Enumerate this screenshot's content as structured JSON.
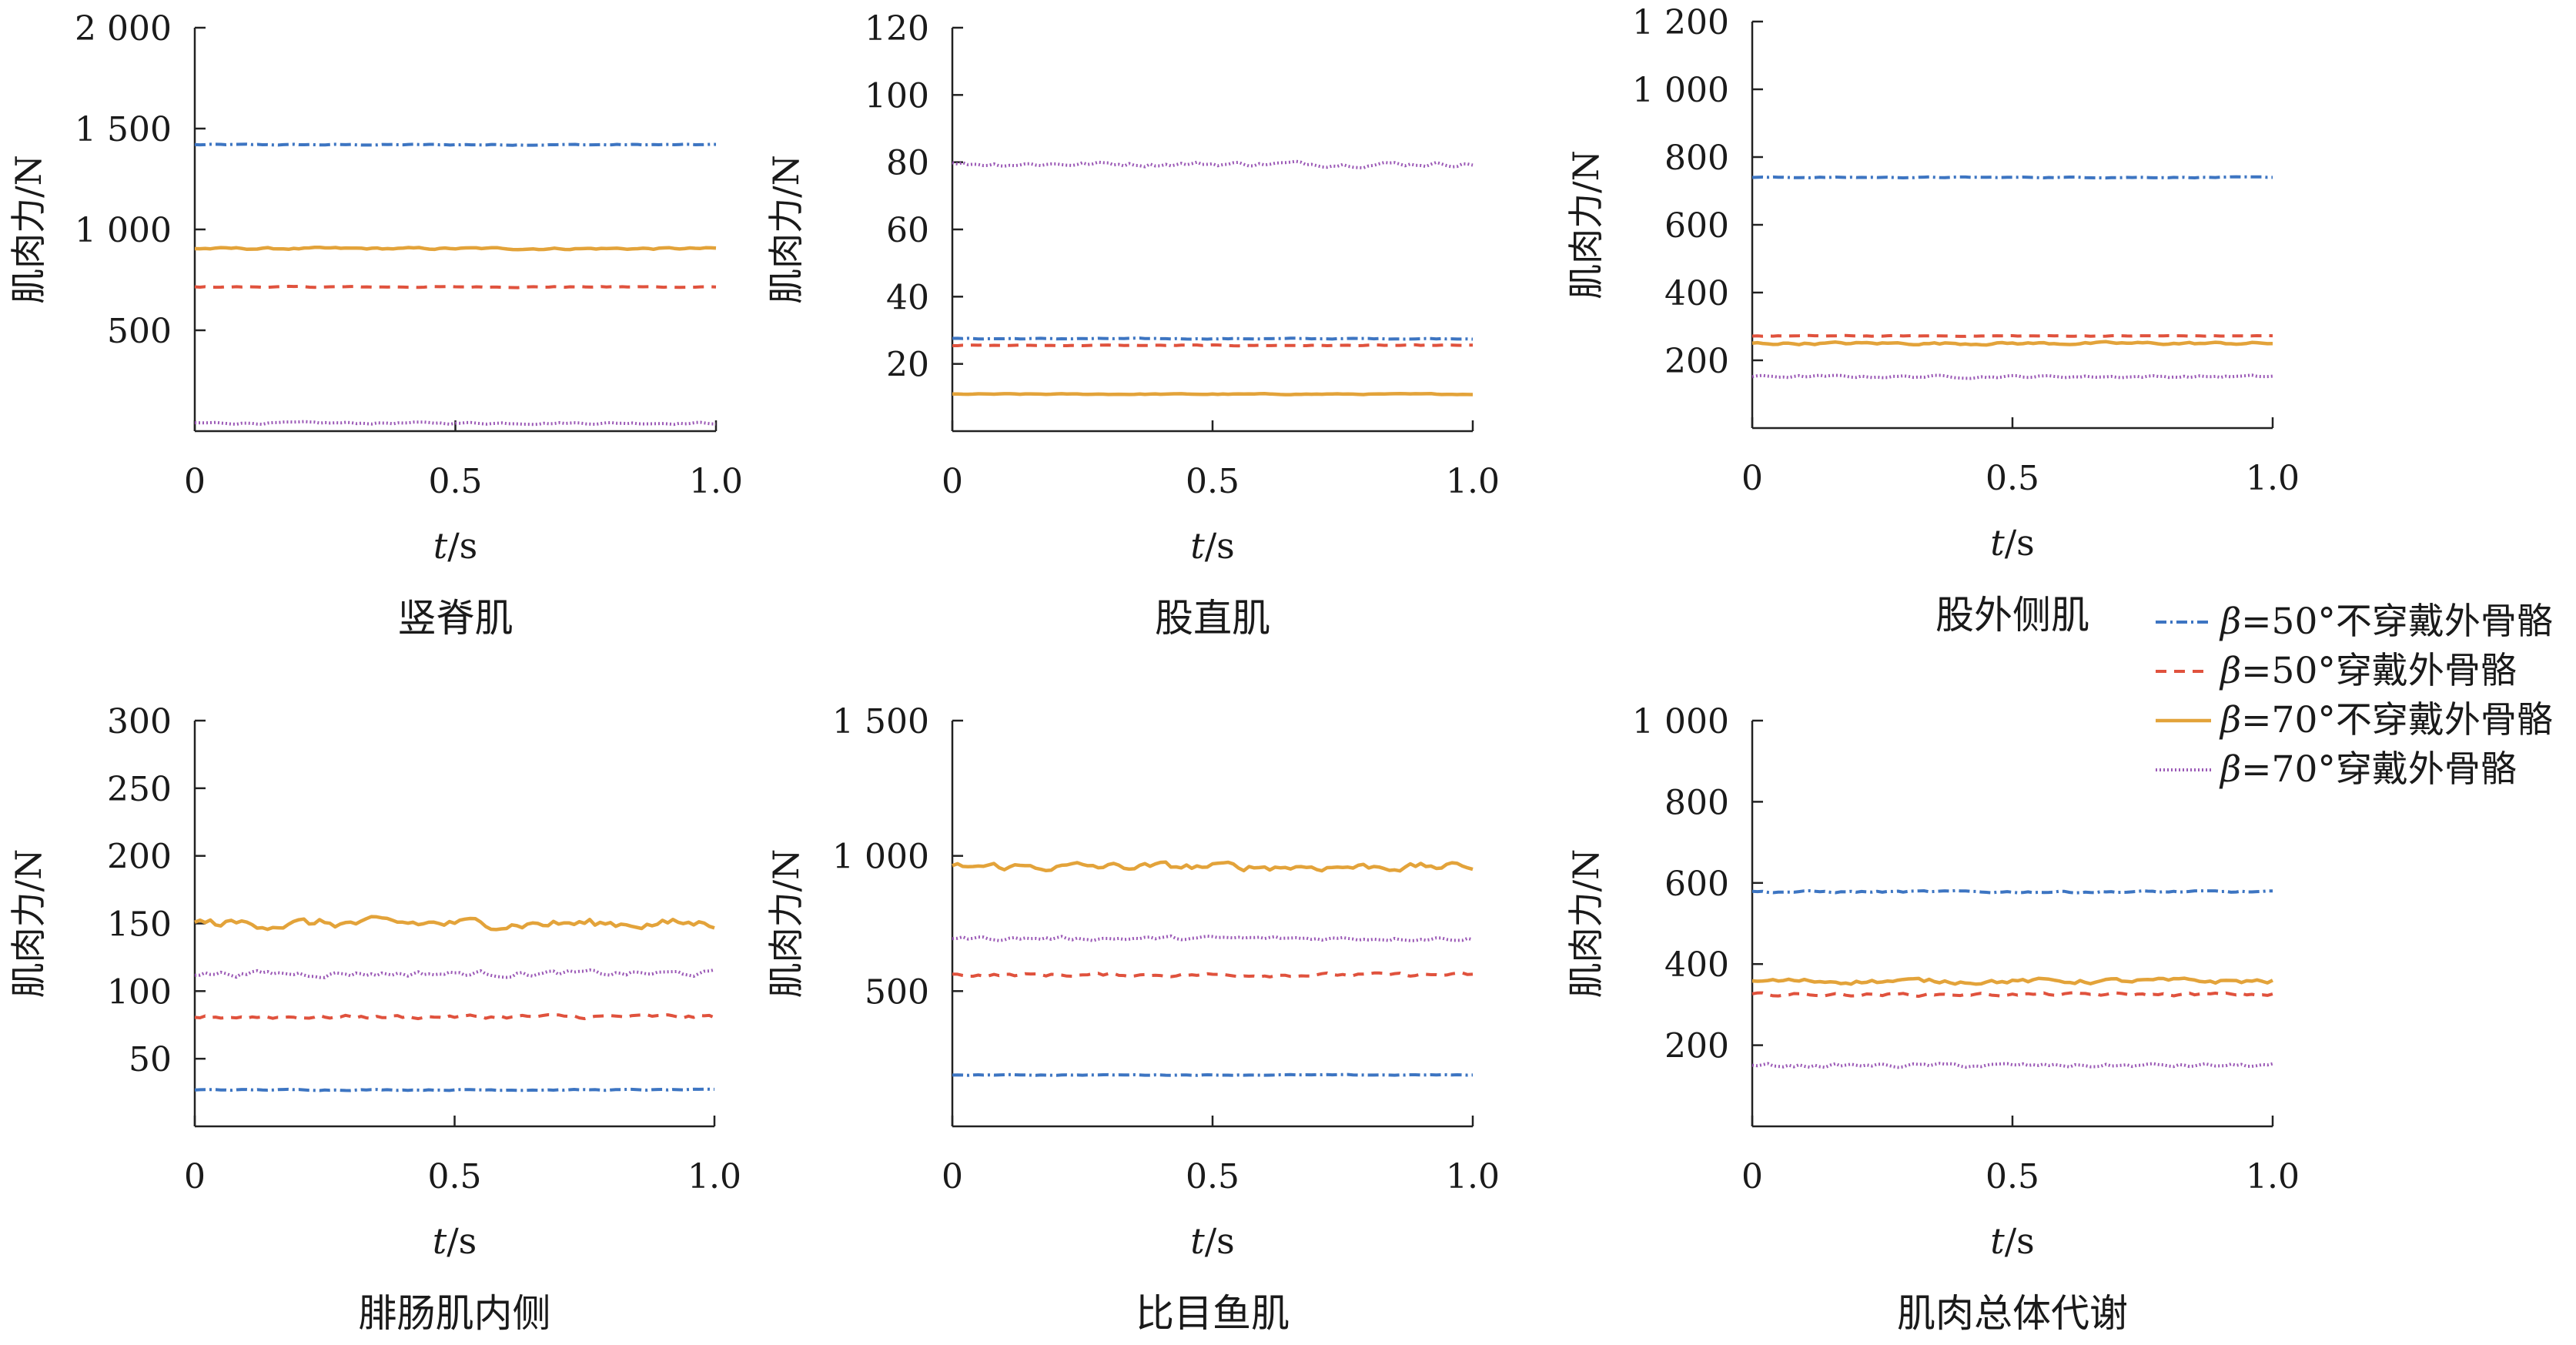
{
  "figure": {
    "xlabel_var": "t",
    "xlabel_unit": "/s",
    "ylabel": "肌肉力/N"
  },
  "legend": [
    {
      "prefix": "β",
      "text": "=50°不穿戴外骨骼",
      "color": "#3d75c2",
      "style": "dashdot"
    },
    {
      "prefix": "β",
      "text": "=50°穿戴外骨骼",
      "color": "#e0523d",
      "style": "dashed"
    },
    {
      "prefix": "β",
      "text": "=70°不穿戴外骨骼",
      "color": "#e3a33a",
      "style": "solid"
    },
    {
      "prefix": "β",
      "text": "=70°穿戴外骨骼",
      "color": "#9b59b6",
      "style": "dotted"
    }
  ],
  "chart_data": [
    {
      "type": "line",
      "title": "竖脊肌",
      "xlabel": "t/s",
      "ylabel": "肌肉力/N",
      "xlim": [
        0,
        1.0
      ],
      "ylim": [
        0,
        2000
      ],
      "xticks": [
        0,
        0.5,
        1.0
      ],
      "xtick_labels": [
        "0",
        "0.5",
        "1.0"
      ],
      "yticks": [
        500,
        1000,
        1500,
        2000
      ],
      "ytick_labels": [
        "500",
        "1 000",
        "1 500",
        "2 000"
      ],
      "series": [
        {
          "name": "β=50°不穿戴外骨骼",
          "level": 1420,
          "noise": 2
        },
        {
          "name": "β=50°穿戴外骨骼",
          "level": 715,
          "noise": 2
        },
        {
          "name": "β=70°不穿戴外骨骼",
          "level": 905,
          "noise": 4
        },
        {
          "name": "β=70°穿戴外骨骼",
          "level": 40,
          "noise": 4
        }
      ]
    },
    {
      "type": "line",
      "title": "股直肌",
      "xlabel": "t/s",
      "ylabel": "肌肉力/N",
      "xlim": [
        0,
        1.0
      ],
      "ylim": [
        0,
        120
      ],
      "xticks": [
        0,
        0.5,
        1.0
      ],
      "xtick_labels": [
        "0",
        "0.5",
        "1.0"
      ],
      "yticks": [
        20,
        40,
        60,
        80,
        100,
        120
      ],
      "ytick_labels": [
        "20",
        "40",
        "60",
        "80",
        "100",
        "120"
      ],
      "series": [
        {
          "name": "β=50°不穿戴外骨骼",
          "level": 27.5,
          "noise": 0.1
        },
        {
          "name": "β=50°穿戴外骨骼",
          "level": 25.5,
          "noise": 0.1
        },
        {
          "name": "β=70°不穿戴外骨骼",
          "level": 11,
          "noise": 0.1
        },
        {
          "name": "β=70°穿戴外骨骼",
          "level": 79.5,
          "noise": 0.6
        }
      ]
    },
    {
      "type": "line",
      "title": "股外侧肌",
      "xlabel": "t/s",
      "ylabel": "肌肉力/N",
      "xlim": [
        0,
        1.0
      ],
      "ylim": [
        0,
        1200
      ],
      "xticks": [
        0,
        0.5,
        1.0
      ],
      "xtick_labels": [
        "0",
        "0.5",
        "1.0"
      ],
      "yticks": [
        200,
        400,
        600,
        800,
        1000,
        1200
      ],
      "ytick_labels": [
        "200",
        "400",
        "600",
        "800",
        "1 000",
        "1 200"
      ],
      "series": [
        {
          "name": "β=50°不穿戴外骨骼",
          "level": 740,
          "noise": 1
        },
        {
          "name": "β=50°穿戴外骨骼",
          "level": 272,
          "noise": 1
        },
        {
          "name": "β=70°不穿戴外骨骼",
          "level": 250,
          "noise": 3
        },
        {
          "name": "β=70°穿戴外骨骼",
          "level": 152,
          "noise": 3
        }
      ]
    },
    {
      "type": "line",
      "title": "腓肠肌内侧",
      "xlabel": "t/s",
      "ylabel": "肌肉力/N",
      "xlim": [
        0,
        1.0
      ],
      "ylim": [
        0,
        300
      ],
      "xticks": [
        0,
        0.5,
        1.0
      ],
      "xtick_labels": [
        "0",
        "0.5",
        "1.0"
      ],
      "yticks": [
        50,
        100,
        150,
        200,
        250,
        300
      ],
      "ytick_labels": [
        "50",
        "100",
        "150",
        "200",
        "250",
        "300"
      ],
      "series": [
        {
          "name": "β=50°不穿戴外骨骼",
          "level": 27,
          "noise": 0.3
        },
        {
          "name": "β=50°穿戴外骨骼",
          "level": 81,
          "noise": 1.2
        },
        {
          "name": "β=70°不穿戴外骨骼",
          "level": 150,
          "noise": 3
        },
        {
          "name": "β=70°穿戴外骨骼",
          "level": 113,
          "noise": 1.8
        }
      ]
    },
    {
      "type": "line",
      "title": "比目鱼肌",
      "xlabel": "t/s",
      "ylabel": "肌肉力/N",
      "xlim": [
        0,
        1.0
      ],
      "ylim": [
        0,
        1500
      ],
      "xticks": [
        0,
        0.5,
        1.0
      ],
      "xtick_labels": [
        "0",
        "0.5",
        "1.0"
      ],
      "yticks": [
        500,
        1000,
        1500
      ],
      "ytick_labels": [
        "500",
        "1 000",
        "1 500"
      ],
      "series": [
        {
          "name": "β=50°不穿戴外骨骼",
          "level": 190,
          "noise": 1
        },
        {
          "name": "β=50°穿戴外骨骼",
          "level": 560,
          "noise": 5
        },
        {
          "name": "β=70°不穿戴外骨骼",
          "level": 960,
          "noise": 12
        },
        {
          "name": "β=70°穿戴外骨骼",
          "level": 695,
          "noise": 6
        }
      ]
    },
    {
      "type": "line",
      "title": "肌肉总体代谢",
      "xlabel": "t/s",
      "ylabel": "肌肉力/N",
      "xlim": [
        0,
        1.0
      ],
      "ylim": [
        0,
        1000
      ],
      "xticks": [
        0,
        0.5,
        1.0
      ],
      "xtick_labels": [
        "0",
        "0.5",
        "1.0"
      ],
      "yticks": [
        200,
        400,
        600,
        800,
        1000
      ],
      "ytick_labels": [
        "200",
        "400",
        "600",
        "800",
        "1 000"
      ],
      "series": [
        {
          "name": "β=50°不穿戴外骨骼",
          "level": 578,
          "noise": 2
        },
        {
          "name": "β=50°穿戴外骨骼",
          "level": 325,
          "noise": 3
        },
        {
          "name": "β=70°不穿戴外骨骼",
          "level": 358,
          "noise": 5
        },
        {
          "name": "β=70°穿戴外骨骼",
          "level": 150,
          "noise": 4
        }
      ]
    }
  ]
}
